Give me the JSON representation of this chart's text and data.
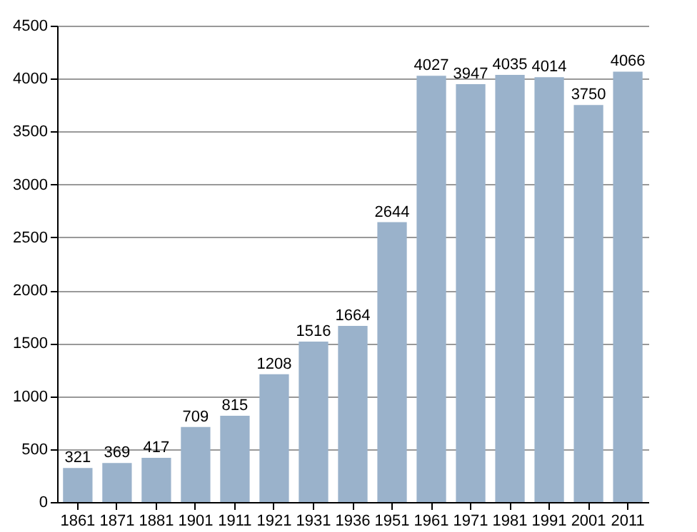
{
  "chart_data": {
    "type": "bar",
    "categories": [
      "1861",
      "1871",
      "1881",
      "1901",
      "1911",
      "1921",
      "1931",
      "1936",
      "1951",
      "1961",
      "1971",
      "1981",
      "1991",
      "2001",
      "2011"
    ],
    "values": [
      321,
      369,
      417,
      709,
      815,
      1208,
      1516,
      1664,
      2644,
      4027,
      3947,
      4035,
      4014,
      3750,
      4066
    ],
    "color": "#9ab2cb",
    "ylim": [
      0,
      4500
    ],
    "yticks": [
      0,
      500,
      1000,
      1500,
      2000,
      2500,
      3000,
      3500,
      4000,
      4500
    ],
    "grid": "y",
    "data_labels": true
  }
}
